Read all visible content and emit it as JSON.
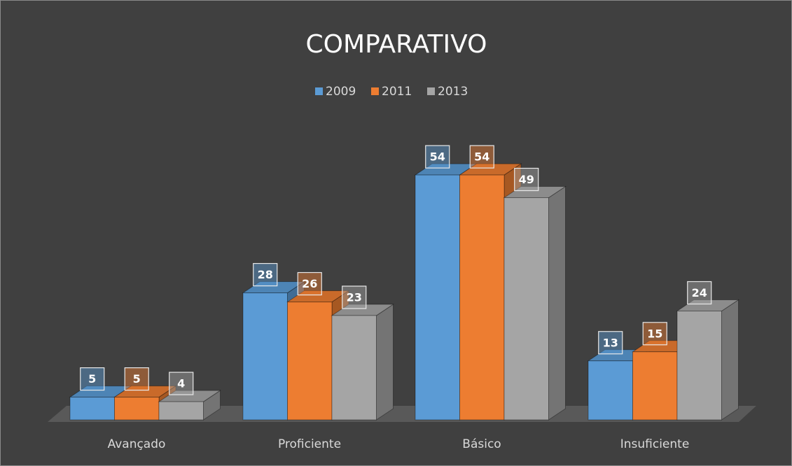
{
  "chart_data": {
    "type": "bar3d",
    "title": "COMPARATIVO",
    "categories": [
      "Avançado",
      "Proficiente",
      "Básico",
      "Insuficiente"
    ],
    "series": [
      {
        "name": "2009",
        "color": "#5b9bd5",
        "values": [
          5,
          28,
          54,
          13
        ]
      },
      {
        "name": "2011",
        "color": "#ed7d31",
        "values": [
          5,
          26,
          54,
          15
        ]
      },
      {
        "name": "2013",
        "color": "#a5a5a5",
        "values": [
          4,
          23,
          49,
          24
        ]
      }
    ],
    "legend": "top",
    "grid": false
  }
}
